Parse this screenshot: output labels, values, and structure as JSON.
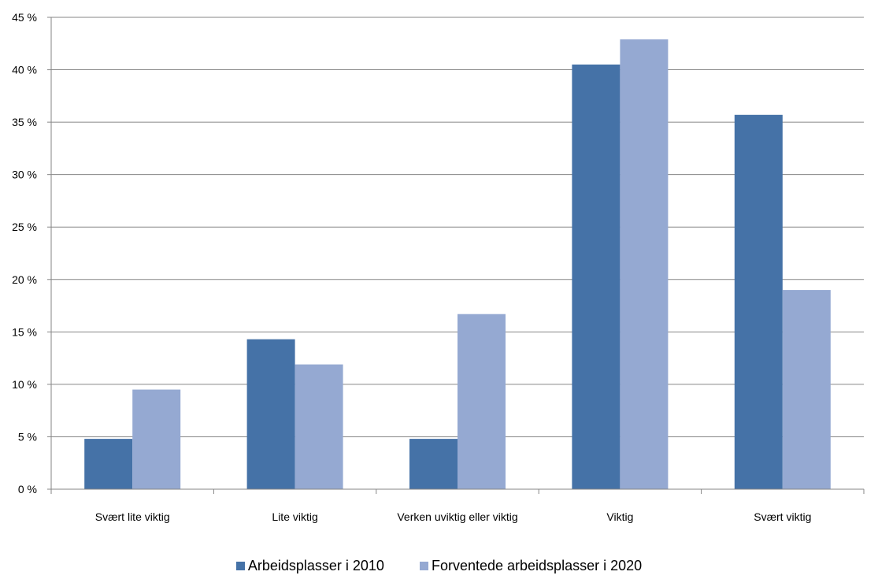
{
  "chart_data": {
    "type": "bar",
    "categories": [
      "Svært lite viktig",
      "Lite viktig",
      "Verken uviktig eller viktig",
      "Viktig",
      "Svært viktig"
    ],
    "series": [
      {
        "name": "Arbeidsplasser i 2010",
        "values": [
          4.8,
          14.3,
          4.8,
          40.5,
          35.7
        ],
        "color": "#4572A7"
      },
      {
        "name": "Forventede arbeidsplasser i 2020",
        "values": [
          9.5,
          11.9,
          16.7,
          42.9,
          19.0
        ],
        "color": "#95A9D2"
      }
    ],
    "yticks": [
      "0 %",
      "5 %",
      "10 %",
      "15 %",
      "20 %",
      "25 %",
      "30 %",
      "35 %",
      "40 %",
      "45 %"
    ],
    "ylim": [
      0,
      45
    ],
    "ystep": 5,
    "grid": true,
    "legend_position": "bottom",
    "title": "",
    "xlabel": "",
    "ylabel": ""
  }
}
